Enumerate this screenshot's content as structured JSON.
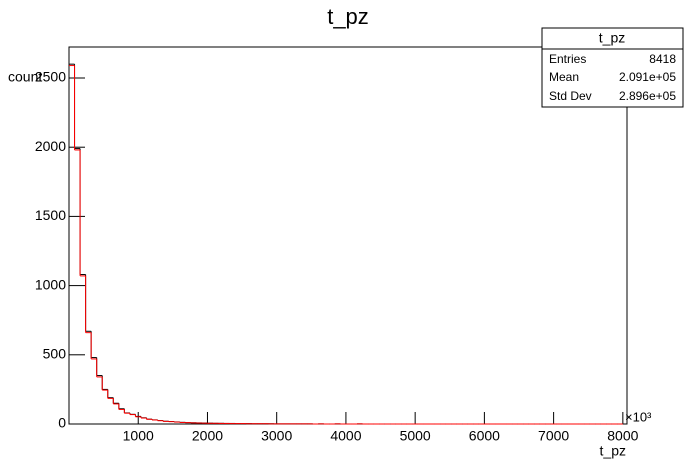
{
  "chart_data": {
    "type": "histogram",
    "title": "t_pz",
    "x_label": "t_pz",
    "y_label": "count",
    "x_multiplier": "×10³",
    "bins": [
      0,
      80,
      160,
      240,
      320,
      400,
      480,
      560,
      640,
      720,
      800,
      880,
      960,
      1040,
      1120,
      1200,
      1280,
      1360,
      1440,
      1520,
      1600,
      1680,
      1760,
      1840,
      1920,
      2000,
      2080,
      2160,
      2240,
      2320,
      2400,
      2480,
      2560,
      2640,
      2720,
      2800,
      2880,
      2960,
      3040,
      3120,
      3200,
      3280,
      3360,
      3440,
      3520,
      3600,
      3680,
      3760,
      3840,
      3920,
      4000,
      4080,
      4160,
      4240,
      4320,
      4400,
      4480,
      4560,
      4640,
      4720,
      4800,
      4880,
      4960,
      5040,
      5120,
      5200,
      5280,
      5360,
      5440,
      5520,
      5600,
      5680,
      5760,
      5840,
      5920,
      6000,
      6080,
      6160,
      6240,
      6320,
      6400,
      6480,
      6560,
      6640,
      6720,
      6800,
      6880,
      6960,
      7040,
      7120,
      7200,
      7280,
      7360,
      7440,
      7520,
      7600,
      7680,
      7760,
      7840,
      7920,
      8000
    ],
    "series": [
      {
        "color": "#000000",
        "values": [
          2600,
          1990,
          1080,
          670,
          480,
          350,
          250,
          190,
          150,
          110,
          80,
          70,
          55,
          45,
          35,
          30,
          25,
          20,
          18,
          15,
          12,
          10,
          9,
          8,
          7,
          6,
          5,
          5,
          4,
          4,
          3,
          3,
          3,
          2,
          2,
          2,
          2,
          1,
          1,
          1,
          1,
          1,
          1,
          1,
          0,
          1,
          0,
          0,
          1,
          0,
          0,
          0,
          1,
          0,
          0,
          0,
          0,
          0,
          0,
          0,
          0,
          0,
          0,
          0,
          0,
          0,
          0,
          0,
          0,
          0,
          0,
          0,
          0,
          0,
          0,
          0,
          0,
          0,
          0,
          0,
          0,
          0,
          0,
          0,
          0,
          0,
          0,
          0,
          0,
          0,
          0,
          0,
          0,
          0,
          0,
          0,
          0,
          0,
          0,
          0
        ]
      },
      {
        "color": "#ff0000",
        "values": [
          2590,
          1980,
          1070,
          660,
          470,
          340,
          245,
          185,
          145,
          105,
          78,
          68,
          52,
          43,
          34,
          29,
          24,
          19,
          17,
          14,
          11,
          10,
          8,
          7,
          6,
          5,
          5,
          4,
          4,
          3,
          3,
          3,
          2,
          2,
          2,
          2,
          1,
          1,
          1,
          1,
          1,
          1,
          1,
          1,
          0,
          1,
          0,
          0,
          1,
          0,
          0,
          0,
          1,
          0,
          0,
          0,
          0,
          0,
          0,
          0,
          0,
          0,
          0,
          0,
          0,
          0,
          0,
          0,
          0,
          0,
          0,
          0,
          0,
          0,
          0,
          0,
          0,
          0,
          0,
          0,
          0,
          0,
          0,
          0,
          0,
          0,
          0,
          0,
          0,
          0,
          0,
          0,
          0,
          0,
          0,
          0,
          0,
          0,
          0,
          0
        ]
      }
    ],
    "xlim": [
      0,
      8060
    ],
    "ylim": [
      0,
      2724
    ],
    "xticks": [
      1000,
      2000,
      3000,
      4000,
      5000,
      6000,
      7000,
      8000
    ],
    "yticks": [
      0,
      500,
      1000,
      1500,
      2000,
      2500
    ],
    "stats": {
      "title": "t_pz",
      "rows": [
        [
          "Entries",
          "8418"
        ],
        [
          "Mean",
          "2.091e+05"
        ],
        [
          "Std Dev",
          "2.896e+05"
        ]
      ]
    }
  }
}
